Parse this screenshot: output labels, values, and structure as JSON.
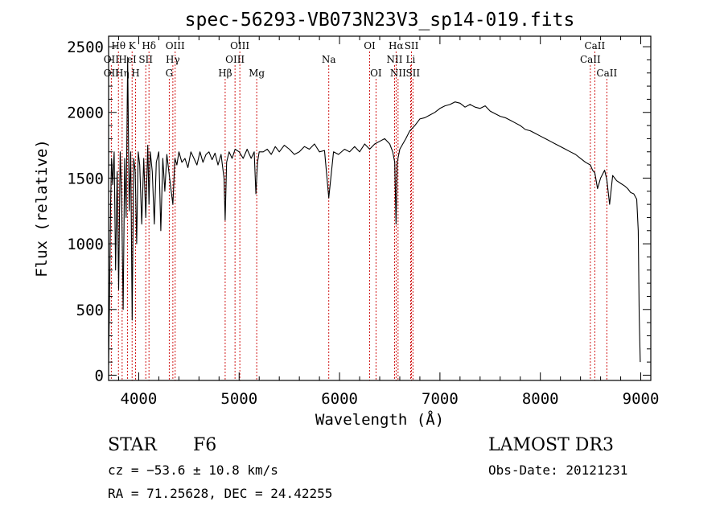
{
  "chart_data": {
    "type": "line",
    "title": "spec-56293-VB073N23V3_sp14-019.fits",
    "xlabel": "Wavelength (Å)",
    "ylabel": "Flux (relative)",
    "xlim": [
      3700,
      9100
    ],
    "ylim": [
      -40,
      2580
    ],
    "x_ticks": [
      4000,
      5000,
      6000,
      7000,
      8000,
      9000
    ],
    "y_ticks": [
      0,
      500,
      1000,
      1500,
      2000,
      2500
    ],
    "series": [
      {
        "name": "flux",
        "x": [
          3700,
          3710,
          3720,
          3730,
          3740,
          3755,
          3770,
          3785,
          3800,
          3815,
          3830,
          3845,
          3860,
          3875,
          3890,
          3905,
          3920,
          3935,
          3950,
          3965,
          3980,
          3995,
          4010,
          4030,
          4050,
          4070,
          4090,
          4102,
          4115,
          4135,
          4155,
          4175,
          4200,
          4220,
          4240,
          4260,
          4280,
          4300,
          4320,
          4340,
          4360,
          4380,
          4400,
          4430,
          4460,
          4490,
          4520,
          4550,
          4580,
          4610,
          4640,
          4670,
          4700,
          4730,
          4760,
          4790,
          4820,
          4850,
          4861,
          4875,
          4900,
          4930,
          4960,
          5000,
          5040,
          5080,
          5120,
          5150,
          5167,
          5183,
          5200,
          5240,
          5280,
          5320,
          5360,
          5400,
          5450,
          5500,
          5550,
          5600,
          5650,
          5700,
          5750,
          5800,
          5850,
          5893,
          5940,
          5990,
          6050,
          6100,
          6150,
          6200,
          6250,
          6300,
          6350,
          6400,
          6450,
          6500,
          6530,
          6550,
          6563,
          6575,
          6600,
          6630,
          6660,
          6700,
          6750,
          6800,
          6850,
          6900,
          6950,
          7000,
          7050,
          7100,
          7150,
          7200,
          7250,
          7300,
          7350,
          7400,
          7450,
          7500,
          7550,
          7600,
          7650,
          7700,
          7750,
          7800,
          7850,
          7900,
          7950,
          8000,
          8050,
          8100,
          8150,
          8200,
          8250,
          8300,
          8350,
          8400,
          8450,
          8498,
          8520,
          8542,
          8570,
          8600,
          8640,
          8662,
          8690,
          8720,
          8760,
          8800,
          8840,
          8870,
          8900,
          8930,
          8960,
          8975,
          8985,
          8995
        ],
        "y": [
          80,
          600,
          1300,
          1650,
          1450,
          1700,
          800,
          1550,
          650,
          1700,
          1350,
          500,
          1650,
          1200,
          2420,
          1250,
          1700,
          420,
          1650,
          1550,
          1000,
          1700,
          1600,
          1150,
          1650,
          1200,
          1750,
          1300,
          1700,
          1550,
          1150,
          1620,
          1700,
          1100,
          1650,
          1400,
          1680,
          1550,
          1420,
          1300,
          1650,
          1600,
          1700,
          1620,
          1650,
          1580,
          1700,
          1650,
          1600,
          1700,
          1620,
          1680,
          1700,
          1640,
          1690,
          1600,
          1680,
          1500,
          1180,
          1620,
          1700,
          1650,
          1720,
          1700,
          1650,
          1720,
          1650,
          1700,
          1380,
          1620,
          1700,
          1700,
          1720,
          1680,
          1740,
          1700,
          1750,
          1720,
          1680,
          1700,
          1740,
          1720,
          1760,
          1700,
          1710,
          1350,
          1700,
          1680,
          1720,
          1700,
          1740,
          1700,
          1760,
          1720,
          1760,
          1780,
          1800,
          1760,
          1700,
          1620,
          1150,
          1620,
          1720,
          1760,
          1800,
          1860,
          1900,
          1950,
          1960,
          1980,
          2000,
          2030,
          2050,
          2060,
          2080,
          2070,
          2040,
          2060,
          2040,
          2030,
          2050,
          2010,
          1990,
          1970,
          1960,
          1940,
          1920,
          1900,
          1870,
          1860,
          1840,
          1820,
          1800,
          1780,
          1760,
          1740,
          1720,
          1700,
          1680,
          1650,
          1620,
          1600,
          1560,
          1540,
          1420,
          1500,
          1560,
          1490,
          1300,
          1520,
          1480,
          1460,
          1440,
          1420,
          1390,
          1380,
          1340,
          1100,
          450,
          100
        ]
      }
    ],
    "spectral_lines": [
      {
        "label": "Hθ",
        "wavelength": 3798,
        "row": 0
      },
      {
        "label": "K",
        "wavelength": 3934,
        "row": 0
      },
      {
        "label": "Hδ",
        "wavelength": 4102,
        "row": 0
      },
      {
        "label": "OIII",
        "wavelength": 4363,
        "row": 0
      },
      {
        "label": "OIII",
        "wavelength": 5007,
        "row": 0
      },
      {
        "label": "OI",
        "wavelength": 6300,
        "row": 0
      },
      {
        "label": "Hα",
        "wavelength": 6563,
        "row": 0
      },
      {
        "label": "SII",
        "wavelength": 6717,
        "row": 0
      },
      {
        "label": "CaII",
        "wavelength": 8542,
        "row": 0
      },
      {
        "label": "OII",
        "wavelength": 3727,
        "row": 1
      },
      {
        "label": "HeI",
        "wavelength": 3889,
        "row": 1
      },
      {
        "label": "SII",
        "wavelength": 4070,
        "row": 1
      },
      {
        "label": "Hγ",
        "wavelength": 4340,
        "row": 1
      },
      {
        "label": "OIII",
        "wavelength": 4959,
        "row": 1
      },
      {
        "label": "Na",
        "wavelength": 5893,
        "row": 1
      },
      {
        "label": "NII",
        "wavelength": 6548,
        "row": 1
      },
      {
        "label": "Li",
        "wavelength": 6708,
        "row": 1
      },
      {
        "label": "CaII",
        "wavelength": 8498,
        "row": 1
      },
      {
        "label": "OII",
        "wavelength": 3727,
        "row": 2
      },
      {
        "label": "Hη",
        "wavelength": 3835,
        "row": 2
      },
      {
        "label": "H",
        "wavelength": 3968,
        "row": 2
      },
      {
        "label": "G",
        "wavelength": 4304,
        "row": 2
      },
      {
        "label": "Hβ",
        "wavelength": 4861,
        "row": 2
      },
      {
        "label": "Mg",
        "wavelength": 5175,
        "row": 2
      },
      {
        "label": "OI",
        "wavelength": 6363,
        "row": 2
      },
      {
        "label": "NII",
        "wavelength": 6583,
        "row": 2
      },
      {
        "label": "SII",
        "wavelength": 6731,
        "row": 2
      },
      {
        "label": "CaII",
        "wavelength": 8662,
        "row": 2
      }
    ],
    "colors": {
      "line_markers": "#cc0000",
      "spectrum": "#000000"
    }
  },
  "info": {
    "object_class": "STAR",
    "subclass": "F6",
    "redshift": "cz = −53.6 ± 10.8 km/s",
    "coords": "RA =  71.25628, DEC =  24.42255",
    "survey": "LAMOST DR3",
    "obs_date": "Obs-Date: 20121231"
  }
}
